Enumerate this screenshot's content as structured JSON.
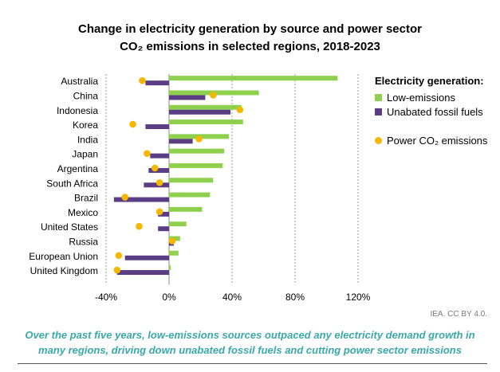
{
  "title_line1": "Change in electricity generation by source and power sector",
  "title_line2": "CO₂ emissions in selected regions, 2018-2023",
  "legend": {
    "title": "Electricity generation:",
    "low": "Low-emissions",
    "fossil": "Unabated fossil fuels",
    "co2": "Power CO₂ emissions"
  },
  "colors": {
    "low": "#8fd14f",
    "fossil": "#5a3d82",
    "co2": "#f5b800"
  },
  "credit": "IEA. CC BY 4.0.",
  "caption_line1": "Over the past five years, low-emissions sources outpaced any electricity demand growth in",
  "caption_line2": "many regions, driving down unabated fossil fuels and cutting power sector emissions",
  "chart_data": {
    "type": "bar",
    "orientation": "horizontal",
    "title": "Change in electricity generation by source and power sector CO₂ emissions in selected regions, 2018-2023",
    "xlim": [
      -40,
      120
    ],
    "xticks": [
      "-40%",
      "0%",
      "40%",
      "80%",
      "120%"
    ],
    "xtick_values": [
      -40,
      0,
      40,
      80,
      120
    ],
    "gridlines": "vertical dotted",
    "legend_position": "right",
    "categories": [
      "Australia",
      "China",
      "Indonesia",
      "Korea",
      "India",
      "Japan",
      "Argentina",
      "South Africa",
      "Brazil",
      "Mexico",
      "United States",
      "Russia",
      "European Union",
      "United Kingdom"
    ],
    "series": [
      {
        "name": "Low-emissions",
        "type": "bar",
        "values": [
          107,
          57,
          46,
          47,
          38,
          35,
          34,
          28,
          26,
          21,
          11,
          7,
          6,
          1
        ]
      },
      {
        "name": "Unabated fossil fuels",
        "type": "bar",
        "values": [
          -15,
          23,
          39,
          -15,
          15,
          -12,
          -13,
          -16,
          -35,
          -7,
          -7,
          3,
          -28,
          -33
        ]
      },
      {
        "name": "Power CO₂ emissions",
        "type": "scatter",
        "values": [
          -17,
          28,
          45,
          -23,
          19,
          -14,
          -9,
          -6,
          -28,
          -6,
          -19,
          2,
          -32,
          -33
        ]
      }
    ]
  }
}
